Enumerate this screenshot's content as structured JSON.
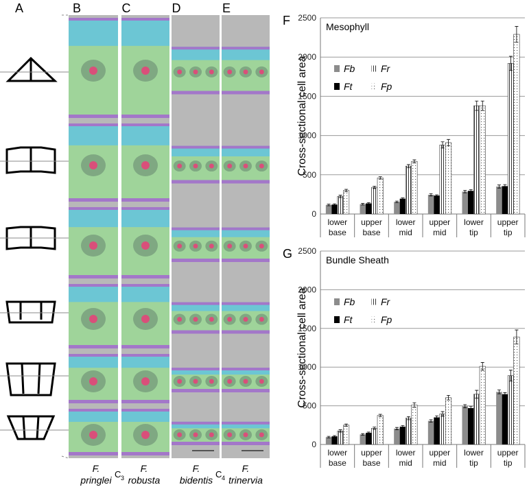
{
  "panel_labels": [
    "A",
    "B",
    "C",
    "D",
    "E"
  ],
  "species": [
    {
      "genus": "F.",
      "epithet": "pringlei"
    },
    {
      "genus": "F.",
      "epithet": "robusta"
    },
    {
      "genus": "F.",
      "epithet": "bidentis"
    },
    {
      "genus": "F.",
      "epithet": "trinervia"
    }
  ],
  "photosynthesis_types": [
    {
      "letter": "C",
      "subscript": "3"
    },
    {
      "letter": "C",
      "subscript": "4"
    }
  ],
  "chart_data": [
    {
      "type": "bar",
      "panel_label": "F",
      "title": "Mesophyll",
      "y_label": "Cross-sectional cell area",
      "categories": [
        "lower base",
        "upper base",
        "lower mid",
        "upper mid",
        "lower tip",
        "upper tip"
      ],
      "series": [
        {
          "name": "Fb",
          "color": "#8c8c8c",
          "pattern": "solid",
          "values": [
            115,
            125,
            155,
            245,
            285,
            350
          ],
          "errors": [
            10,
            10,
            10,
            15,
            15,
            20
          ]
        },
        {
          "name": "Ft",
          "color": "#000000",
          "pattern": "solid",
          "values": [
            120,
            135,
            195,
            235,
            295,
            355
          ],
          "errors": [
            10,
            10,
            10,
            10,
            15,
            20
          ]
        },
        {
          "name": "Fr",
          "color": "#ffffff",
          "pattern": "vertical-lines",
          "values": [
            225,
            340,
            610,
            880,
            1380,
            1920
          ],
          "errors": [
            15,
            15,
            20,
            40,
            60,
            90
          ]
        },
        {
          "name": "Fp",
          "color": "#ffffff",
          "pattern": "dots",
          "values": [
            300,
            460,
            670,
            910,
            1380,
            2290
          ],
          "errors": [
            15,
            15,
            20,
            40,
            60,
            100
          ]
        }
      ],
      "ylim": [
        0,
        2500
      ],
      "yticks": [
        0,
        500,
        1000,
        1500,
        2000,
        2500
      ],
      "grid": true
    },
    {
      "type": "bar",
      "panel_label": "G",
      "title": "Bundle Sheath",
      "y_label": "Cross-sectional cell area",
      "categories": [
        "lower base",
        "upper base",
        "lower mid",
        "upper mid",
        "lower tip",
        "upper tip"
      ],
      "series": [
        {
          "name": "Fb",
          "color": "#8c8c8c",
          "pattern": "solid",
          "values": [
            95,
            130,
            205,
            305,
            495,
            680
          ],
          "errors": [
            10,
            10,
            15,
            15,
            20,
            25
          ]
        },
        {
          "name": "Ft",
          "color": "#000000",
          "pattern": "solid",
          "values": [
            105,
            150,
            230,
            350,
            470,
            650
          ],
          "errors": [
            10,
            10,
            15,
            20,
            20,
            20
          ]
        },
        {
          "name": "Fr",
          "color": "#ffffff",
          "pattern": "vertical-lines",
          "values": [
            175,
            210,
            340,
            395,
            650,
            890
          ],
          "errors": [
            15,
            15,
            20,
            30,
            50,
            70
          ]
        },
        {
          "name": "Fp",
          "color": "#ffffff",
          "pattern": "dots",
          "values": [
            250,
            375,
            510,
            605,
            1010,
            1390
          ],
          "errors": [
            15,
            15,
            30,
            30,
            50,
            90
          ]
        }
      ],
      "ylim": [
        0,
        2500
      ],
      "yticks": [
        0,
        500,
        1000,
        1500,
        2000,
        2500
      ],
      "grid": true
    }
  ]
}
